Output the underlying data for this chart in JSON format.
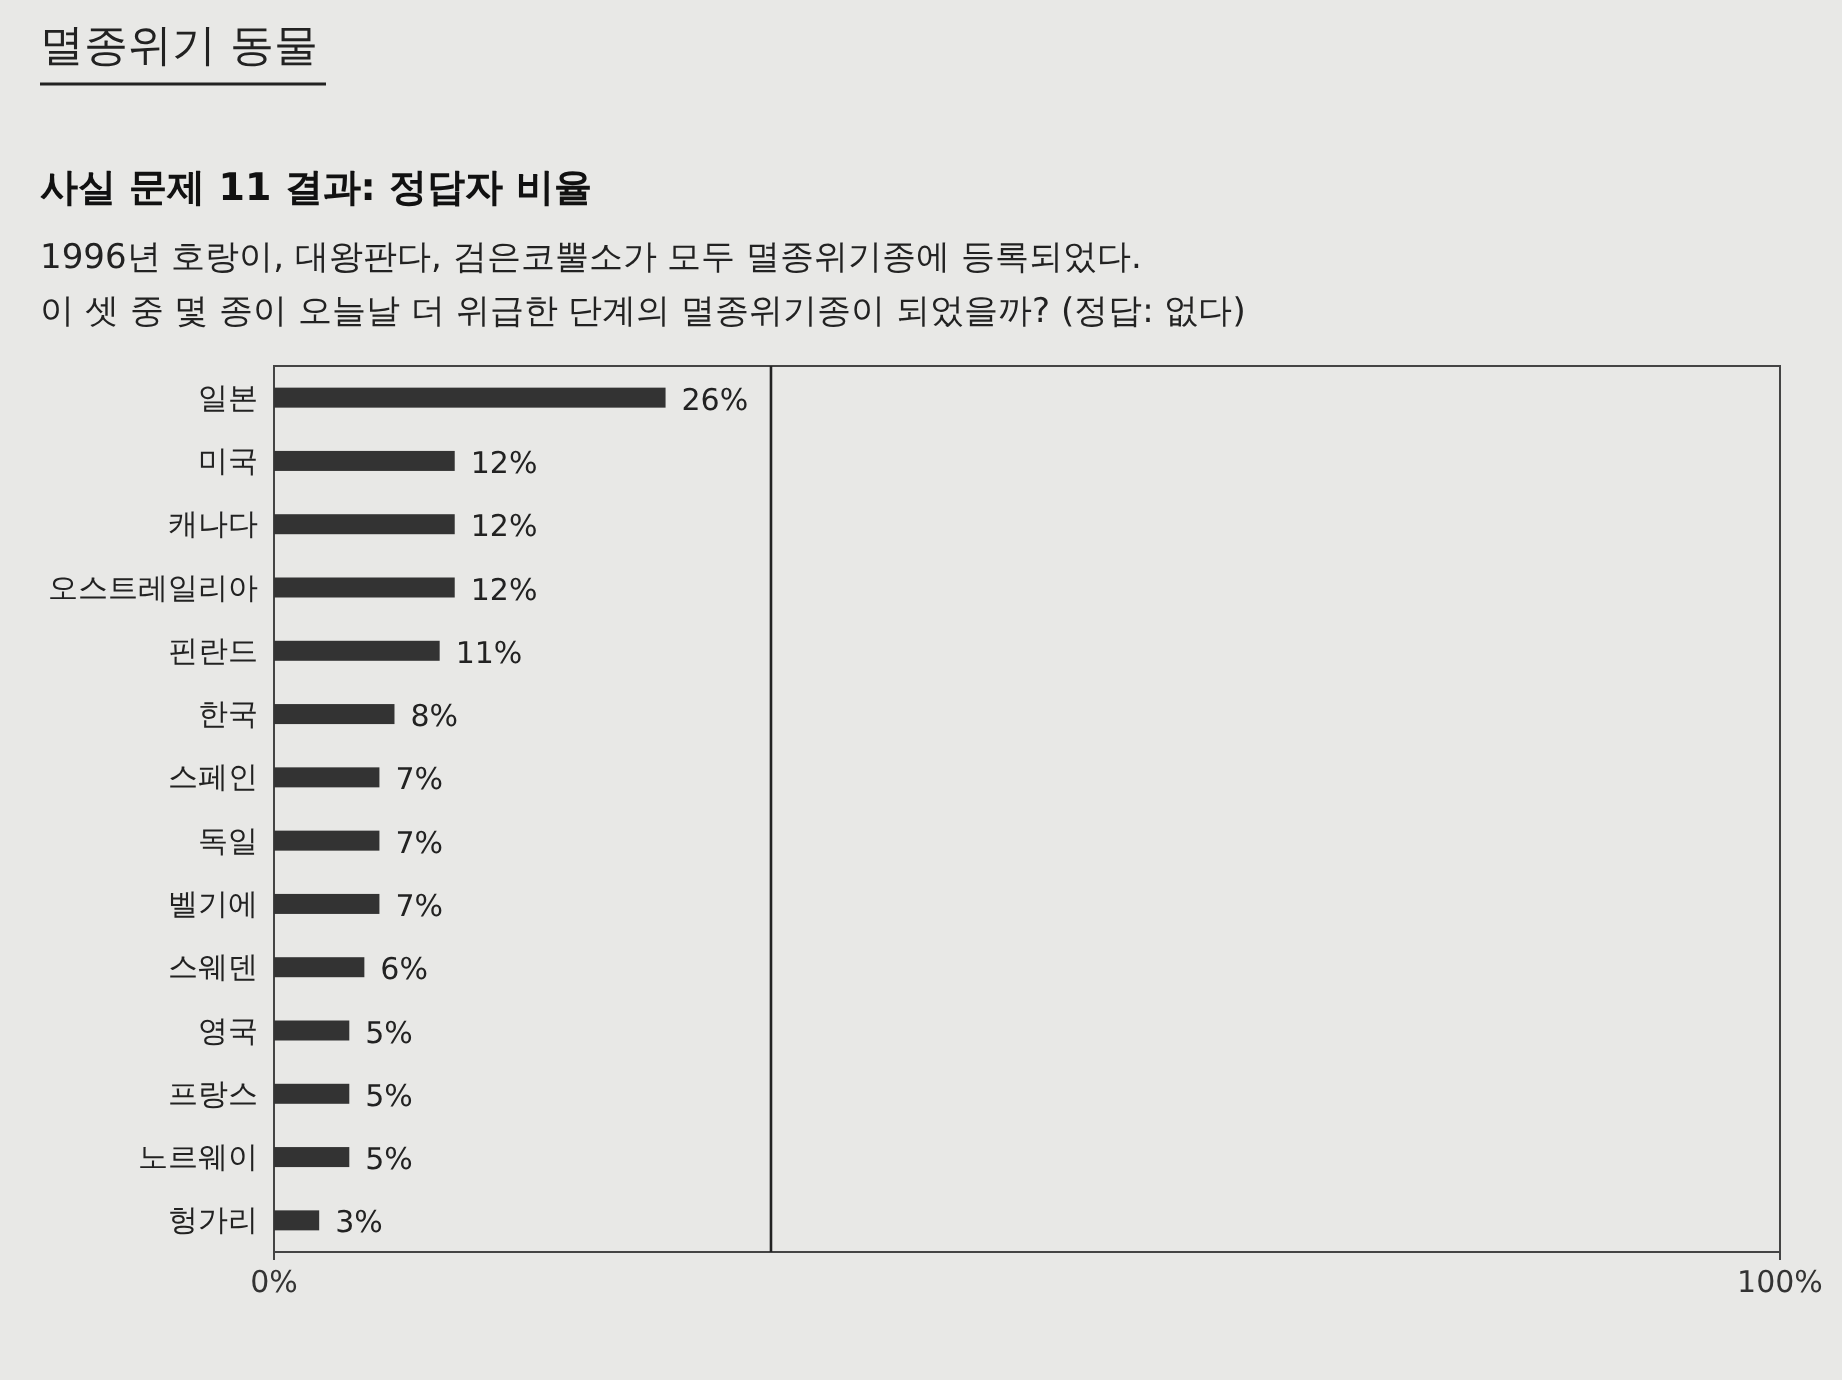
{
  "chart_data": {
    "type": "bar",
    "orientation": "horizontal",
    "title": "멸종위기 동물",
    "subtitle": "사실 문제 11 결과: 정답자 비율",
    "annotations": [
      "1996년 호랑이, 대왕판다, 검은코뿔소가 모두 멸종위기종에 등록되었다.",
      "이 셋 중 몇 종이 오늘날 더 위급한 단계의 멸종위기종이 되었을까? (정답: 없다)"
    ],
    "categories": [
      "일본",
      "미국",
      "캐나다",
      "오스트레일리아",
      "핀란드",
      "한국",
      "스페인",
      "독일",
      "벨기에",
      "스웨덴",
      "영국",
      "프랑스",
      "노르웨이",
      "헝가리"
    ],
    "values": [
      26,
      12,
      12,
      12,
      11,
      8,
      7,
      7,
      7,
      6,
      5,
      5,
      5,
      3
    ],
    "value_labels": [
      "26%",
      "12%",
      "12%",
      "12%",
      "11%",
      "8%",
      "7%",
      "7%",
      "7%",
      "6%",
      "5%",
      "5%",
      "5%",
      "3%"
    ],
    "color": "#333333",
    "xlim": [
      0,
      100
    ],
    "xticks": [
      {
        "value": 0,
        "label": "0%"
      },
      {
        "value": 100,
        "label": "100%"
      }
    ],
    "ref_lines": [
      {
        "axis": "x",
        "value": 33,
        "color": "#222222"
      }
    ]
  }
}
